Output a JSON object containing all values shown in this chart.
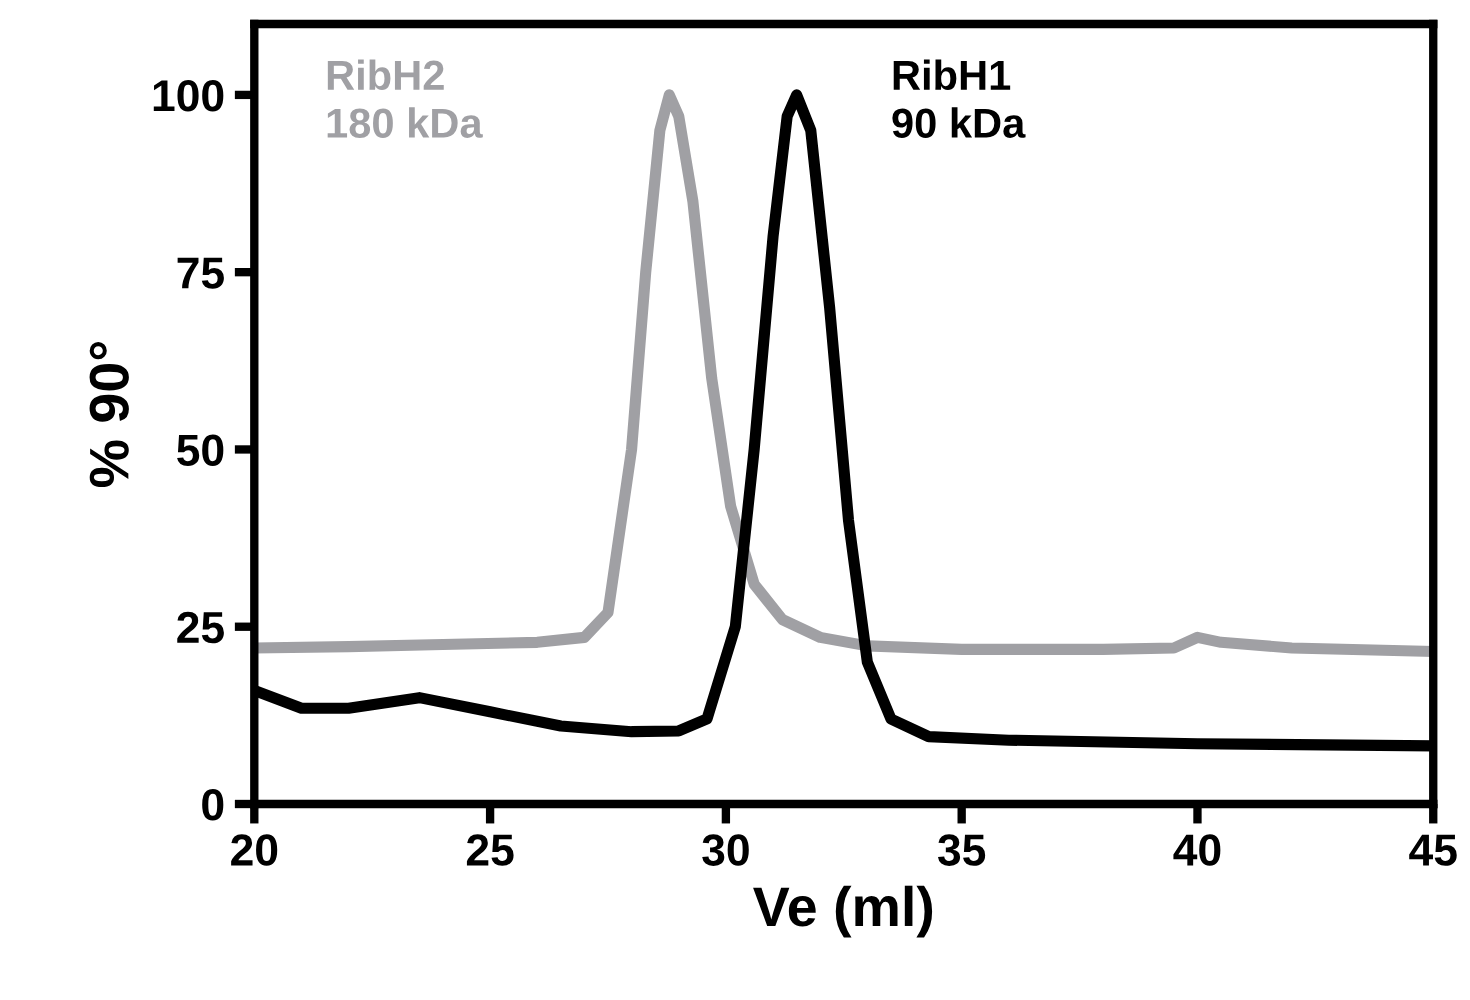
{
  "chart_data": {
    "type": "line",
    "xlabel": "Ve (ml)",
    "ylabel": "% 90°",
    "xlim": [
      20,
      45
    ],
    "ylim": [
      0,
      110
    ],
    "xticks": [
      20,
      25,
      30,
      35,
      40,
      45
    ],
    "yticks": [
      0,
      25,
      50,
      75,
      100
    ],
    "grid": false,
    "legend": false,
    "marker": "none",
    "line_style": "solid",
    "series": [
      {
        "name": "RibH2\n180 kDa",
        "color": "#a0a0a4",
        "x": [
          20,
          22,
          24,
          26,
          27,
          27.5,
          28,
          28.3,
          28.6,
          28.8,
          29.0,
          29.3,
          29.7,
          30.1,
          30.6,
          31.2,
          32,
          33,
          35,
          38,
          39.5,
          40,
          40.5,
          42,
          45
        ],
        "values": [
          22,
          22.2,
          22.5,
          22.8,
          23.5,
          27,
          50,
          75,
          95,
          100,
          97,
          85,
          60,
          42,
          31,
          26,
          23.5,
          22.3,
          21.8,
          21.8,
          22,
          23.5,
          22.8,
          22,
          21.5
        ]
      },
      {
        "name": "RibH1\n90 kDa",
        "color": "#000000",
        "x": [
          20,
          21,
          22,
          23.5,
          25,
          26.5,
          28,
          29,
          29.6,
          30.2,
          30.6,
          31.0,
          31.3,
          31.5,
          31.8,
          32.2,
          32.6,
          33.0,
          33.5,
          34.3,
          36,
          40,
          45
        ],
        "values": [
          16,
          13.5,
          13.5,
          15,
          13,
          11,
          10.2,
          10.3,
          12,
          25,
          50,
          80,
          97,
          100,
          95,
          70,
          40,
          20,
          12,
          9.5,
          9,
          8.5,
          8.2
        ]
      }
    ]
  }
}
